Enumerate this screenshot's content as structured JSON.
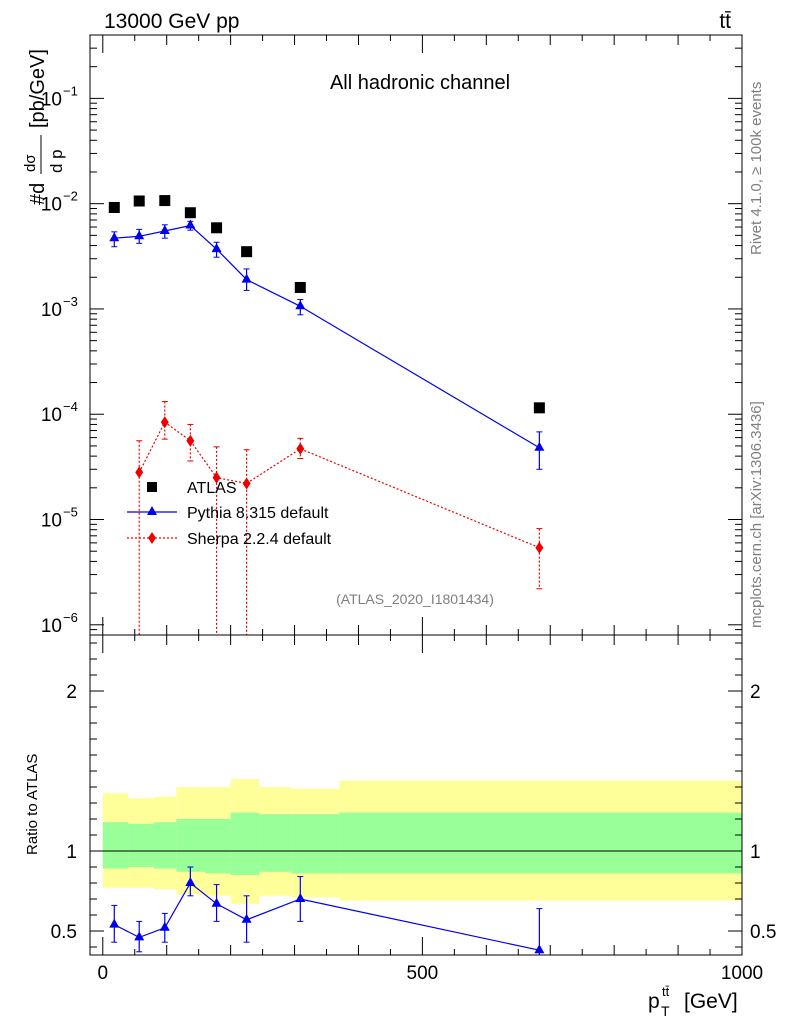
{
  "header": {
    "left_label": "13000 GeV pp",
    "right_label": "tt̄"
  },
  "side_labels": {
    "rivet": "Rivet 4.1.0, ≥ 100k events",
    "mcplots": "mcplots.cern.ch [arXiv:1306.3436]"
  },
  "chart_data": [
    {
      "type": "scatter",
      "title": "All hadronic channel",
      "watermark": "(ATLAS_2020_I1801434)",
      "ylabel": "#dσ/d p_T^{tt̄} [pb/GeV]",
      "ylabel_parts": {
        "prefix": "#d",
        "frac_num": "dσ",
        "frac_den": "d p",
        "unit": "[pb/GeV]"
      },
      "yscale": "log",
      "ylim": [
        8e-07,
        0.4
      ],
      "yticks": [
        {
          "value": 1e-06,
          "label": "10",
          "exp": "−6"
        },
        {
          "value": 1e-05,
          "label": "10",
          "exp": "−5"
        },
        {
          "value": 0.0001,
          "label": "10",
          "exp": "−4"
        },
        {
          "value": 0.001,
          "label": "10",
          "exp": "−3"
        },
        {
          "value": 0.01,
          "label": "10",
          "exp": "−2"
        },
        {
          "value": 0.1,
          "label": "10",
          "exp": "−1"
        }
      ],
      "xlim": [
        -20,
        1000
      ],
      "series": [
        {
          "name": "ATLAS",
          "marker": "square",
          "color": "#000000",
          "x": [
            18,
            57,
            97,
            137,
            178,
            225,
            309,
            683
          ],
          "values": [
            0.0092,
            0.0106,
            0.0107,
            0.0082,
            0.0059,
            0.0035,
            0.0016,
            0.000115
          ]
        },
        {
          "name": "Pythia 8.315 default",
          "marker": "triangle",
          "color": "#0000ee",
          "line": "solid",
          "x": [
            18,
            57,
            97,
            137,
            178,
            225,
            309,
            683
          ],
          "values": [
            0.0047,
            0.0049,
            0.0055,
            0.0062,
            0.0037,
            0.0019,
            0.00106,
            4.8e-05
          ],
          "err_low": [
            0.0039,
            0.0042,
            0.0047,
            0.0056,
            0.0031,
            0.0015,
            0.00088,
            3e-05
          ],
          "err_high": [
            0.0054,
            0.0057,
            0.0063,
            0.0068,
            0.0043,
            0.0024,
            0.00123,
            6.8e-05
          ]
        },
        {
          "name": "Sherpa 2.2.4 default",
          "marker": "diamond",
          "color": "#ee0000",
          "line": "dotted",
          "x": [
            57,
            97,
            137,
            178,
            225,
            309,
            683
          ],
          "values": [
            2.8e-05,
            8.4e-05,
            5.6e-05,
            2.5e-05,
            2.2e-05,
            4.7e-05,
            5.4e-06
          ],
          "err_low": [
            8e-07,
            5.8e-05,
            3.6e-05,
            8e-07,
            8e-07,
            3.8e-05,
            2.2e-06
          ],
          "err_high": [
            5.6e-05,
            0.000132,
            8e-05,
            4.9e-05,
            4.6e-05,
            5.9e-05,
            8.2e-06
          ]
        }
      ]
    },
    {
      "type": "scatter",
      "ylabel": "Ratio to ATLAS",
      "ylim": [
        0.35,
        2.35
      ],
      "yticks": [
        {
          "value": 0.5,
          "label": "0.5"
        },
        {
          "value": 1,
          "label": "1"
        },
        {
          "value": 2,
          "label": "2"
        }
      ],
      "xlabel": "p_T^{tt̄} [GeV]",
      "xlabel_parts": {
        "base": "p",
        "sub": "T",
        "sup": "tt̄",
        "unit": "[GeV]"
      },
      "xlim": [
        -20,
        1000
      ],
      "xticks": [
        {
          "value": 0,
          "label": "0"
        },
        {
          "value": 500,
          "label": "500"
        },
        {
          "value": 1000,
          "label": "1000"
        }
      ],
      "bands": {
        "edges": [
          0,
          40,
          80,
          115,
          160,
          200,
          245,
          295,
          370,
          1000
        ],
        "inner_low": [
          0.89,
          0.9,
          0.89,
          0.87,
          0.86,
          0.85,
          0.87,
          0.86,
          0.86
        ],
        "inner_high": [
          1.18,
          1.17,
          1.18,
          1.2,
          1.2,
          1.24,
          1.23,
          1.23,
          1.24
        ],
        "outer_low": [
          0.77,
          0.77,
          0.76,
          0.73,
          0.72,
          0.67,
          0.72,
          0.71,
          0.69
        ],
        "outer_high": [
          1.36,
          1.33,
          1.34,
          1.4,
          1.4,
          1.45,
          1.4,
          1.39,
          1.44
        ],
        "inner_color": "#99ff99",
        "outer_color": "#ffff99"
      },
      "series": [
        {
          "name": "Pythia 8.315 default",
          "marker": "triangle",
          "color": "#0000ee",
          "line": "solid",
          "x": [
            18,
            57,
            97,
            137,
            178,
            225,
            309,
            683
          ],
          "values": [
            0.54,
            0.46,
            0.52,
            0.8,
            0.67,
            0.57,
            0.7,
            0.38
          ],
          "err_low": [
            0.43,
            0.37,
            0.43,
            0.72,
            0.56,
            0.43,
            0.56,
            0.35
          ],
          "err_high": [
            0.66,
            0.56,
            0.61,
            0.9,
            0.79,
            0.72,
            0.84,
            0.64
          ]
        }
      ]
    }
  ]
}
